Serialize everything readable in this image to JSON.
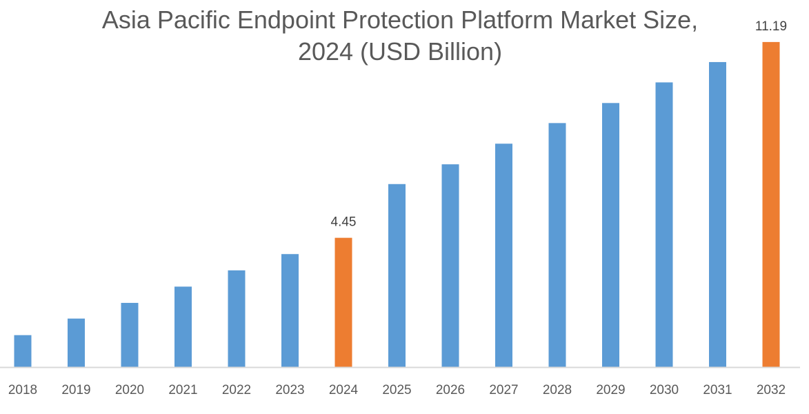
{
  "chart_data": {
    "type": "bar",
    "title_lines": [
      "Asia Pacific Endpoint Protection Platform Market Size,",
      "2024 (USD Billion)"
    ],
    "xlabel": "",
    "ylabel": "",
    "categories": [
      "2018",
      "2019",
      "2020",
      "2021",
      "2022",
      "2023",
      "2024",
      "2025",
      "2026",
      "2027",
      "2028",
      "2029",
      "2030",
      "2031",
      "2032"
    ],
    "values": [
      1.1,
      1.67,
      2.21,
      2.77,
      3.33,
      3.89,
      4.45,
      6.3,
      6.98,
      7.69,
      8.4,
      9.09,
      9.8,
      10.5,
      11.19
    ],
    "data_labels": {
      "2024": "4.45",
      "2032": "11.19"
    },
    "highlight": [
      "2024",
      "2032"
    ],
    "ylim": [
      0,
      11.9
    ],
    "grid": false,
    "legend": "none",
    "colors": {
      "default": "#5b9bd5",
      "highlight": "#ed7d31",
      "axis": "#d9d9d9",
      "text": "#595959"
    }
  }
}
